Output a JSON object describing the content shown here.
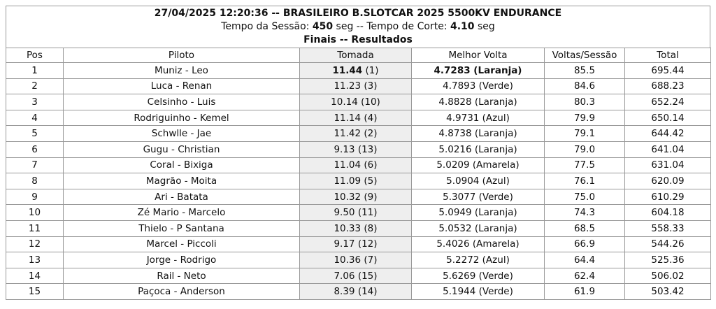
{
  "header": {
    "title": "27/04/2025 12:20:36 -- BRASILEIRO B.SLOTCAR 2025 5500KV ENDURANCE",
    "session": {
      "label1": "Tempo da Sessão:",
      "value1": "450",
      "label2": "seg -- Tempo de Corte:",
      "value2": "4.10",
      "label3": "seg"
    },
    "subtitle": "Finais -- Resultados"
  },
  "table": {
    "columns": [
      "Pos",
      "Piloto",
      "Tomada",
      "Melhor Volta",
      "Voltas/Sessão",
      "Total"
    ],
    "rows": [
      [
        "1",
        "Muniz - Leo",
        "11.44",
        "(1)",
        "4.7283 (Laranja)",
        "85.5",
        "695.44"
      ],
      [
        "2",
        "Luca - Renan",
        "11.23",
        "(3)",
        "4.7893 (Verde)",
        "84.6",
        "688.23"
      ],
      [
        "3",
        "Celsinho - Luis",
        "10.14",
        "(10)",
        "4.8828 (Laranja)",
        "80.3",
        "652.24"
      ],
      [
        "4",
        "Rodriguinho - Kemel",
        "11.14",
        "(4)",
        "4.9731 (Azul)",
        "79.9",
        "650.14"
      ],
      [
        "5",
        "Schwlle - Jae",
        "11.42",
        "(2)",
        "4.8738 (Laranja)",
        "79.1",
        "644.42"
      ],
      [
        "6",
        "Gugu - Christian",
        "9.13",
        "(13)",
        "5.0216 (Laranja)",
        "79.0",
        "641.04"
      ],
      [
        "7",
        "Coral - Bixiga",
        "11.04",
        "(6)",
        "5.0209 (Amarela)",
        "77.5",
        "631.04"
      ],
      [
        "8",
        "Magrão - Moita",
        "11.09",
        "(5)",
        "5.0904 (Azul)",
        "76.1",
        "620.09"
      ],
      [
        "9",
        "Ari - Batata",
        "10.32",
        "(9)",
        "5.3077 (Verde)",
        "75.0",
        "610.29"
      ],
      [
        "10",
        "Zé Mario - Marcelo",
        "9.50",
        "(11)",
        "5.0949 (Laranja)",
        "74.3",
        "604.18"
      ],
      [
        "11",
        "Thielo - P Santana",
        "10.33",
        "(8)",
        "5.0532 (Laranja)",
        "68.5",
        "558.33"
      ],
      [
        "12",
        "Marcel - Piccoli",
        "9.17",
        "(12)",
        "5.4026 (Amarela)",
        "66.9",
        "544.26"
      ],
      [
        "13",
        "Jorge - Rodrigo",
        "10.36",
        "(7)",
        "5.2272 (Azul)",
        "64.4",
        "525.36"
      ],
      [
        "14",
        "Rail - Neto",
        "7.06",
        "(15)",
        "5.6269 (Verde)",
        "62.4",
        "506.02"
      ],
      [
        "15",
        "Paçoca - Anderson",
        "8.39",
        "(14)",
        "5.1944 (Verde)",
        "61.9",
        "503.42"
      ]
    ]
  }
}
